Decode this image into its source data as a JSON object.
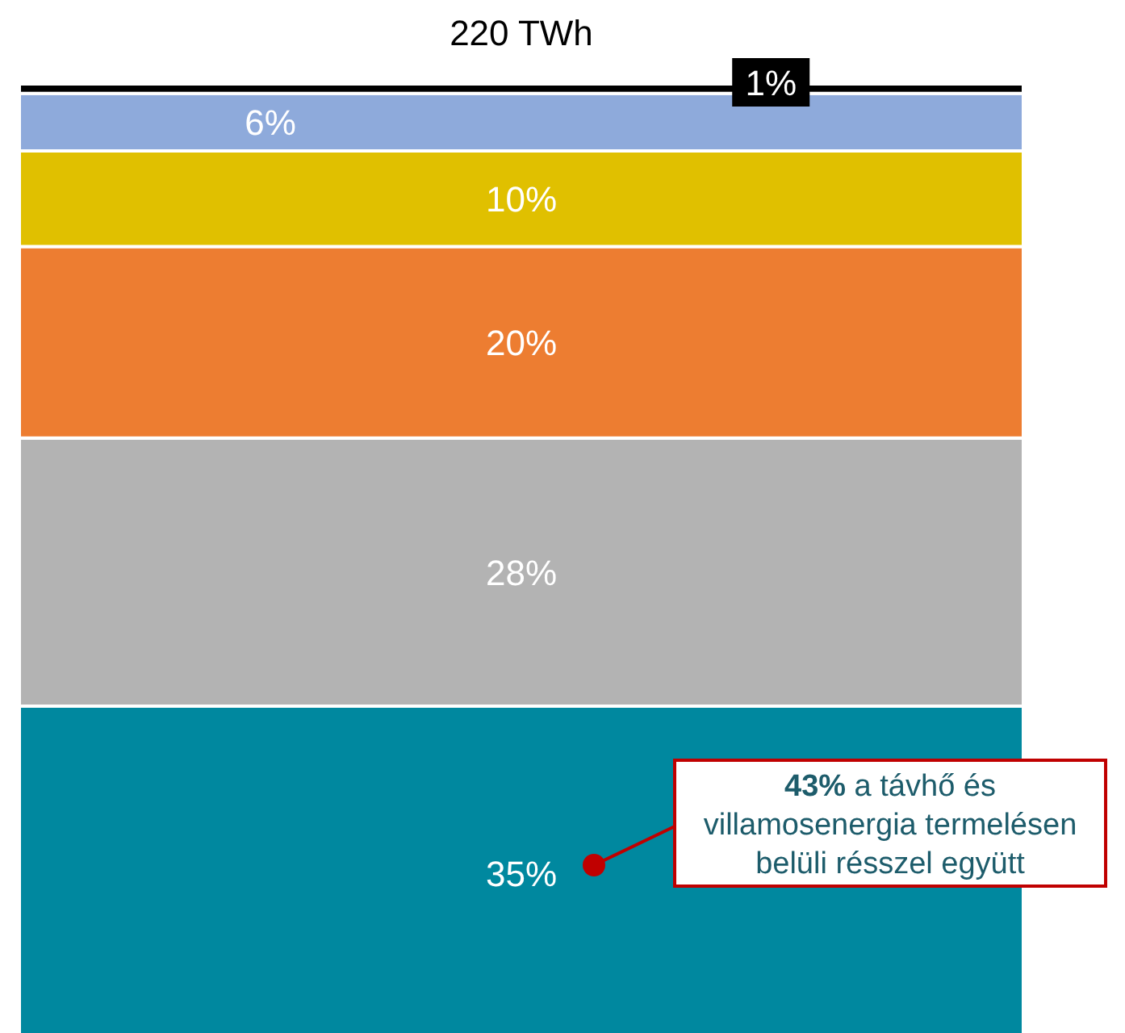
{
  "chart_data": {
    "type": "bar",
    "title": "220 TWh",
    "stacked": true,
    "categories": [
      null
    ],
    "series": [
      {
        "color": "#00889f",
        "values": [
          35
        ],
        "value_labels": [
          "35%"
        ]
      },
      {
        "color": "#b3b3b3",
        "values": [
          28
        ],
        "value_labels": [
          "28%"
        ]
      },
      {
        "color": "#ed7d31",
        "values": [
          20
        ],
        "value_labels": [
          "20%"
        ]
      },
      {
        "color": "#e0c000",
        "values": [
          10
        ],
        "value_labels": [
          "10%"
        ]
      },
      {
        "color": "#8eaadb",
        "values": [
          6
        ],
        "value_labels": [
          "6%"
        ]
      },
      {
        "color": "#000000",
        "values": [
          1
        ],
        "value_labels": [
          "1%"
        ]
      }
    ],
    "legend": false,
    "annotations": [
      "43% a távhő és villamosenergia termelésen belüli résszel együtt"
    ]
  }
}
